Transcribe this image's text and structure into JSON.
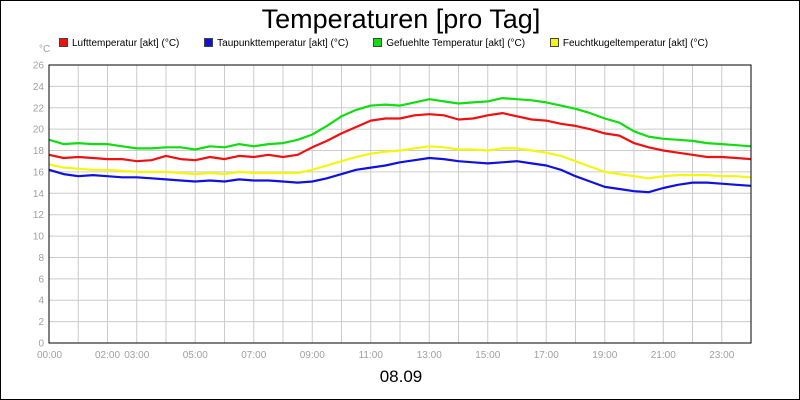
{
  "chart_data": {
    "type": "line",
    "title": "Temperaturen [pro Tag]",
    "date_label": "08.09",
    "y_unit": "°C",
    "ylim": [
      0,
      26
    ],
    "y_ticks": [
      0,
      2,
      4,
      6,
      8,
      10,
      12,
      14,
      16,
      18,
      20,
      22,
      24,
      26
    ],
    "x_range_hours": [
      0,
      24
    ],
    "x_ticks": [
      {
        "h": 0,
        "label": "00:00"
      },
      {
        "h": 2,
        "label": "02:00"
      },
      {
        "h": 3,
        "label": "03:00"
      },
      {
        "h": 5,
        "label": "05:00"
      },
      {
        "h": 7,
        "label": "07:00"
      },
      {
        "h": 9,
        "label": "09:00"
      },
      {
        "h": 11,
        "label": "11:00"
      },
      {
        "h": 13,
        "label": "13:00"
      },
      {
        "h": 15,
        "label": "15:00"
      },
      {
        "h": 17,
        "label": "17:00"
      },
      {
        "h": 19,
        "label": "19:00"
      },
      {
        "h": 21,
        "label": "21:00"
      },
      {
        "h": 23,
        "label": "23:00"
      }
    ],
    "grid": true,
    "legend_position": "top",
    "series": [
      {
        "name": "Lufttemperatur [akt] (°C)",
        "color": "#ee1111",
        "x": [
          0,
          0.5,
          1,
          1.5,
          2,
          2.5,
          3,
          3.5,
          4,
          4.5,
          5,
          5.5,
          6,
          6.5,
          7,
          7.5,
          8,
          8.5,
          9,
          9.5,
          10,
          10.5,
          11,
          11.5,
          12,
          12.5,
          13,
          13.5,
          14,
          14.5,
          15,
          15.5,
          16,
          16.5,
          17,
          17.5,
          18,
          18.5,
          19,
          19.5,
          20,
          20.5,
          21,
          21.5,
          22,
          22.5,
          23,
          23.5,
          24
        ],
        "values": [
          17.6,
          17.3,
          17.4,
          17.3,
          17.2,
          17.2,
          17.0,
          17.1,
          17.5,
          17.2,
          17.1,
          17.4,
          17.2,
          17.5,
          17.4,
          17.6,
          17.4,
          17.6,
          18.3,
          18.9,
          19.6,
          20.2,
          20.8,
          21.0,
          21.0,
          21.3,
          21.4,
          21.3,
          20.9,
          21.0,
          21.3,
          21.5,
          21.2,
          20.9,
          20.8,
          20.5,
          20.3,
          20.0,
          19.6,
          19.4,
          18.7,
          18.3,
          18.0,
          17.8,
          17.6,
          17.4,
          17.4,
          17.3,
          17.2
        ]
      },
      {
        "name": "Taupunkttemperatur [akt] (°C)",
        "color": "#1111dd",
        "x": [
          0,
          0.5,
          1,
          1.5,
          2,
          2.5,
          3,
          3.5,
          4,
          4.5,
          5,
          5.5,
          6,
          6.5,
          7,
          7.5,
          8,
          8.5,
          9,
          9.5,
          10,
          10.5,
          11,
          11.5,
          12,
          12.5,
          13,
          13.5,
          14,
          14.5,
          15,
          15.5,
          16,
          16.5,
          17,
          17.5,
          18,
          18.5,
          19,
          19.5,
          20,
          20.5,
          21,
          21.5,
          22,
          22.5,
          23,
          23.5,
          24
        ],
        "values": [
          16.2,
          15.8,
          15.6,
          15.7,
          15.6,
          15.5,
          15.5,
          15.4,
          15.3,
          15.2,
          15.1,
          15.2,
          15.1,
          15.3,
          15.2,
          15.2,
          15.1,
          15.0,
          15.1,
          15.4,
          15.8,
          16.2,
          16.4,
          16.6,
          16.9,
          17.1,
          17.3,
          17.2,
          17.0,
          16.9,
          16.8,
          16.9,
          17.0,
          16.8,
          16.6,
          16.2,
          15.6,
          15.1,
          14.6,
          14.4,
          14.2,
          14.1,
          14.5,
          14.8,
          15.0,
          15.0,
          14.9,
          14.8,
          14.7
        ]
      },
      {
        "name": "Gefuehlte Temperatur [akt] (°C)",
        "color": "#11dd11",
        "x": [
          0,
          0.5,
          1,
          1.5,
          2,
          2.5,
          3,
          3.5,
          4,
          4.5,
          5,
          5.5,
          6,
          6.5,
          7,
          7.5,
          8,
          8.5,
          9,
          9.5,
          10,
          10.5,
          11,
          11.5,
          12,
          12.5,
          13,
          13.5,
          14,
          14.5,
          15,
          15.5,
          16,
          16.5,
          17,
          17.5,
          18,
          18.5,
          19,
          19.5,
          20,
          20.5,
          21,
          21.5,
          22,
          22.5,
          23,
          23.5,
          24
        ],
        "values": [
          19.0,
          18.6,
          18.7,
          18.6,
          18.6,
          18.4,
          18.2,
          18.2,
          18.3,
          18.3,
          18.1,
          18.4,
          18.3,
          18.6,
          18.4,
          18.6,
          18.7,
          19.0,
          19.5,
          20.3,
          21.2,
          21.8,
          22.2,
          22.3,
          22.2,
          22.5,
          22.8,
          22.6,
          22.4,
          22.5,
          22.6,
          22.9,
          22.8,
          22.7,
          22.5,
          22.2,
          21.9,
          21.5,
          21.0,
          20.6,
          19.8,
          19.3,
          19.1,
          19.0,
          18.9,
          18.7,
          18.6,
          18.5,
          18.4
        ]
      },
      {
        "name": "Feuchtkugeltemperatur [akt] (°C)",
        "color": "#f5f511",
        "x": [
          0,
          0.5,
          1,
          1.5,
          2,
          2.5,
          3,
          3.5,
          4,
          4.5,
          5,
          5.5,
          6,
          6.5,
          7,
          7.5,
          8,
          8.5,
          9,
          9.5,
          10,
          10.5,
          11,
          11.5,
          12,
          12.5,
          13,
          13.5,
          14,
          14.5,
          15,
          15.5,
          16,
          16.5,
          17,
          17.5,
          18,
          18.5,
          19,
          19.5,
          20,
          20.5,
          21,
          21.5,
          22,
          22.5,
          23,
          23.5,
          24
        ],
        "values": [
          16.7,
          16.4,
          16.3,
          16.2,
          16.2,
          16.1,
          16.0,
          16.0,
          16.0,
          15.9,
          15.8,
          15.9,
          15.8,
          16.0,
          15.9,
          15.9,
          15.9,
          15.9,
          16.2,
          16.6,
          17.0,
          17.4,
          17.7,
          17.9,
          18.0,
          18.2,
          18.4,
          18.3,
          18.1,
          18.1,
          18.0,
          18.2,
          18.2,
          18.0,
          17.8,
          17.5,
          17.0,
          16.5,
          16.0,
          15.8,
          15.6,
          15.4,
          15.6,
          15.7,
          15.7,
          15.7,
          15.6,
          15.6,
          15.5
        ]
      }
    ]
  }
}
